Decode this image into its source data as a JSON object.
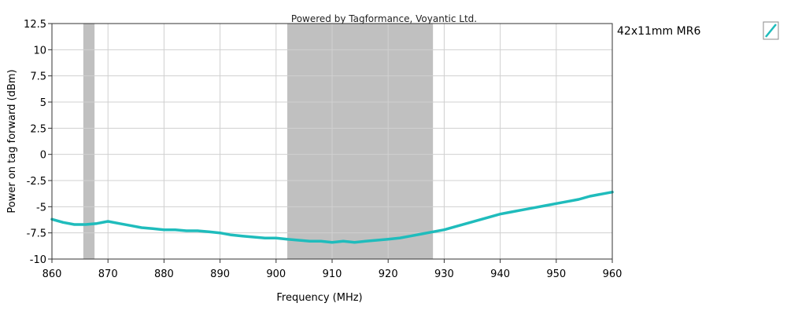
{
  "credit": "Powered by Tagformance, Voyantic Ltd.",
  "chart_data": {
    "type": "line",
    "title": "",
    "xlabel": "Frequency (MHz)",
    "ylabel": "Power on tag forward (dBm)",
    "xlim": [
      860,
      960
    ],
    "ylim": [
      -10,
      12.5
    ],
    "x_ticks": [
      860,
      870,
      880,
      890,
      900,
      910,
      920,
      930,
      940,
      950,
      960
    ],
    "x_tick_labels": [
      "860",
      "870",
      "880",
      "890",
      "900",
      "910",
      "920",
      "930",
      "940",
      "950",
      "960"
    ],
    "y_ticks": [
      12.5,
      10,
      7.5,
      5,
      2.5,
      0,
      -2.5,
      -5,
      -7.5,
      -10
    ],
    "y_tick_labels": [
      "12.5",
      "10",
      "7.5",
      "5",
      "2.5",
      "0",
      "-2.5",
      "-5",
      "-7.5",
      "-10"
    ],
    "grid": true,
    "legend_position": "right",
    "shaded_bands": [
      {
        "x_start": 865.6,
        "x_end": 867.6
      },
      {
        "x_start": 902,
        "x_end": 928
      }
    ],
    "band_color": "#c0c0c0",
    "series": [
      {
        "name": "42x11mm MR6",
        "color": "#1fbcbc",
        "x": [
          860,
          862,
          864,
          866,
          868,
          870,
          872,
          874,
          876,
          878,
          880,
          882,
          884,
          886,
          888,
          890,
          892,
          894,
          896,
          898,
          900,
          902,
          904,
          906,
          908,
          910,
          912,
          914,
          916,
          918,
          920,
          922,
          924,
          926,
          928,
          930,
          932,
          934,
          936,
          938,
          940,
          942,
          944,
          946,
          948,
          950,
          952,
          954,
          956,
          958,
          960
        ],
        "y": [
          -6.2,
          -6.5,
          -6.7,
          -6.7,
          -6.6,
          -6.4,
          -6.6,
          -6.8,
          -7.0,
          -7.1,
          -7.2,
          -7.2,
          -7.3,
          -7.3,
          -7.4,
          -7.5,
          -7.7,
          -7.8,
          -7.9,
          -8.0,
          -8.0,
          -8.1,
          -8.2,
          -8.3,
          -8.3,
          -8.4,
          -8.3,
          -8.4,
          -8.3,
          -8.2,
          -8.1,
          -8.0,
          -7.8,
          -7.6,
          -7.4,
          -7.2,
          -6.9,
          -6.6,
          -6.3,
          -6.0,
          -5.7,
          -5.5,
          -5.3,
          -5.1,
          -4.9,
          -4.7,
          -4.5,
          -4.3,
          -4.0,
          -3.8,
          -3.6
        ]
      }
    ]
  }
}
